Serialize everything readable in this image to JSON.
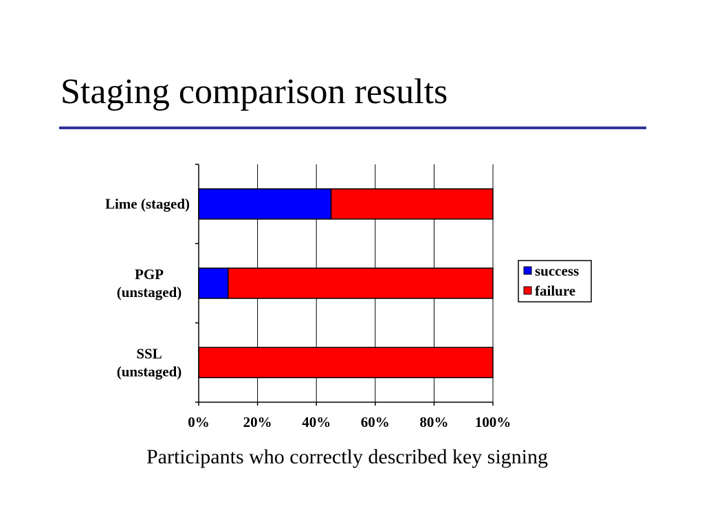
{
  "slide": {
    "title": "Staging comparison results",
    "caption": "Participants who correctly described key signing",
    "rule_color": "#333399"
  },
  "chart_data": {
    "type": "bar",
    "orientation": "horizontal",
    "stacking": "percent",
    "categories": [
      [
        "Lime (staged)"
      ],
      [
        "PGP",
        "(unstaged)"
      ],
      [
        "SSL",
        "(unstaged)"
      ]
    ],
    "series": [
      {
        "name": "success",
        "color": "#0000FF",
        "values": [
          45,
          10,
          0
        ]
      },
      {
        "name": "failure",
        "color": "#FF0000",
        "values": [
          55,
          90,
          100
        ]
      }
    ],
    "x_ticks": [
      "0%",
      "20%",
      "40%",
      "60%",
      "80%",
      "100%"
    ],
    "xlim": [
      0,
      100
    ],
    "grid": true,
    "legend_position": "right"
  }
}
